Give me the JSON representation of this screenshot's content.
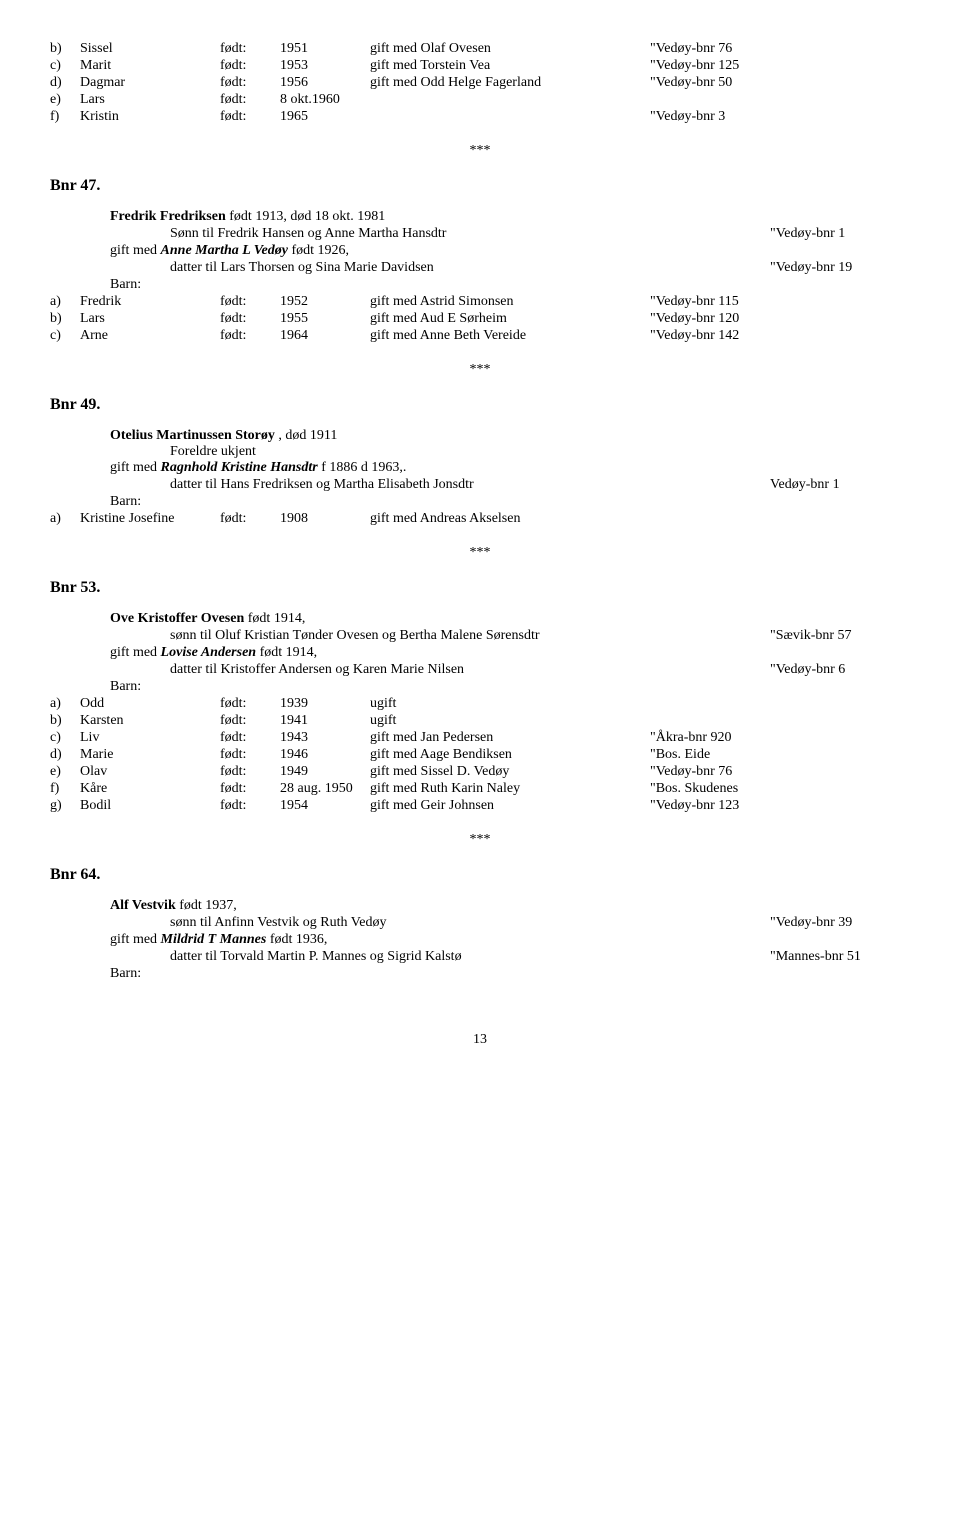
{
  "sep": "***",
  "labels": {
    "fodt": "født:",
    "barn": "Barn:"
  },
  "page_num": "13",
  "block_top": {
    "rows": [
      {
        "a": "b)",
        "b": "Sissel",
        "c": "født:",
        "d": "1951",
        "e": "gift med Olaf Ovesen",
        "f": "\"Vedøy-bnr 76"
      },
      {
        "a": "c)",
        "b": "Marit",
        "c": "født:",
        "d": "1953",
        "e": "gift med Torstein Vea",
        "f": "\"Vedøy-bnr 125"
      },
      {
        "a": "d)",
        "b": "Dagmar",
        "c": "født:",
        "d": "1956",
        "e": "gift med Odd Helge Fagerland",
        "f": "\"Vedøy-bnr 50"
      },
      {
        "a": "e)",
        "b": "Lars",
        "c": "født:",
        "d": "8 okt.1960",
        "e": "",
        "f": ""
      },
      {
        "a": "f)",
        "b": "Kristin",
        "c": "født:",
        "d": "1965",
        "e": "",
        "f": "\"Vedøy-bnr 3"
      }
    ]
  },
  "bnr47": {
    "heading": "Bnr 47.",
    "line1": {
      "pre": "Fredrik Fredriksen",
      "post": " født 1913, død 18 okt. 1981"
    },
    "line2": {
      "text": "Sønn til Fredrik Hansen og Anne Martha Hansdtr",
      "right": "\"Vedøy-bnr 1"
    },
    "line3": {
      "pre": "gift med ",
      "mid": "Anne Martha L Vedøy",
      "post": " født 1926,"
    },
    "line4": {
      "text": "datter til Lars Thorsen og Sina Marie Davidsen",
      "right": "\"Vedøy-bnr 19"
    },
    "rows": [
      {
        "a": "a)",
        "b": "Fredrik",
        "c": "født:",
        "d": "1952",
        "e": "gift med Astrid Simonsen",
        "f": "\"Vedøy-bnr 115"
      },
      {
        "a": "b)",
        "b": "Lars",
        "c": "født:",
        "d": "1955",
        "e": "gift med Aud E  Sørheim",
        "f": "\"Vedøy-bnr 120"
      },
      {
        "a": "c)",
        "b": "Arne",
        "c": "født:",
        "d": "1964",
        "e": "gift med Anne Beth Vereide",
        "f": "\"Vedøy-bnr 142"
      }
    ]
  },
  "bnr49": {
    "heading": "Bnr 49.",
    "line1": {
      "pre": "Otelius Martinussen Storøy",
      "post": " , død 1911"
    },
    "line2": {
      "text": "Foreldre ukjent"
    },
    "line3": {
      "pre": "gift med ",
      "mid": "Ragnhold Kristine Hansdtr",
      "post": " f 1886 d 1963,."
    },
    "line4": {
      "text": "datter til Hans Fredriksen og Martha Elisabeth Jonsdtr",
      "right": "Vedøy-bnr 1"
    },
    "rows": [
      {
        "a": "a)",
        "b": "Kristine Josefine",
        "c": "født:",
        "d": "1908",
        "e": "gift med Andreas Akselsen",
        "f": ""
      }
    ]
  },
  "bnr53": {
    "heading": "Bnr 53.",
    "line1": {
      "pre": "Ove Kristoffer Ovesen",
      "post": " født 1914,"
    },
    "line2": {
      "text": "sønn til Oluf Kristian Tønder Ovesen og Bertha Malene Sørensdtr",
      "right": "\"Sævik-bnr 57"
    },
    "line3": {
      "pre": "gift med ",
      "mid": "Lovise Andersen",
      "post": " født 1914,"
    },
    "line4": {
      "text": "datter til Kristoffer Andersen og Karen Marie Nilsen",
      "right": "\"Vedøy-bnr 6"
    },
    "rows": [
      {
        "a": "a)",
        "b": "Odd",
        "c": "født:",
        "d": "1939",
        "e": "ugift",
        "f": ""
      },
      {
        "a": "b)",
        "b": "Karsten",
        "c": "født:",
        "d": "1941",
        "e": "ugift",
        "f": ""
      },
      {
        "a": "c)",
        "b": "Liv",
        "c": "født:",
        "d": "1943",
        "e": "gift med Jan Pedersen",
        "f": "\"Åkra-bnr 920"
      },
      {
        "a": "d)",
        "b": "Marie",
        "c": "født:",
        "d": "1946",
        "e": "gift med Aage Bendiksen",
        "f": "\"Bos. Eide"
      },
      {
        "a": "e)",
        "b": "Olav",
        "c": "født:",
        "d": "1949",
        "e": "gift med Sissel D. Vedøy",
        "f": "\"Vedøy-bnr 76"
      },
      {
        "a": "f)",
        "b": "Kåre",
        "c": "født:",
        "d": "28 aug. 1950",
        "e": "gift med Ruth Karin Naley",
        "f": "\"Bos. Skudenes"
      },
      {
        "a": "g)",
        "b": "Bodil",
        "c": "født:",
        "d": "1954",
        "e": "gift med Geir Johnsen",
        "f": "\"Vedøy-bnr 123"
      }
    ]
  },
  "bnr64": {
    "heading": "Bnr 64.",
    "line1": {
      "pre": "Alf Vestvik",
      "post": " født 1937,"
    },
    "line2": {
      "text": "sønn til Anfinn Vestvik og Ruth Vedøy",
      "right": "\"Vedøy-bnr 39"
    },
    "line3": {
      "pre": "gift med ",
      "mid": "Mildrid T Mannes",
      "post": " født 1936,"
    },
    "line4": {
      "text": "datter til Torvald Martin P. Mannes og Sigrid Kalstø",
      "right": "\"Mannes-bnr 51"
    }
  }
}
